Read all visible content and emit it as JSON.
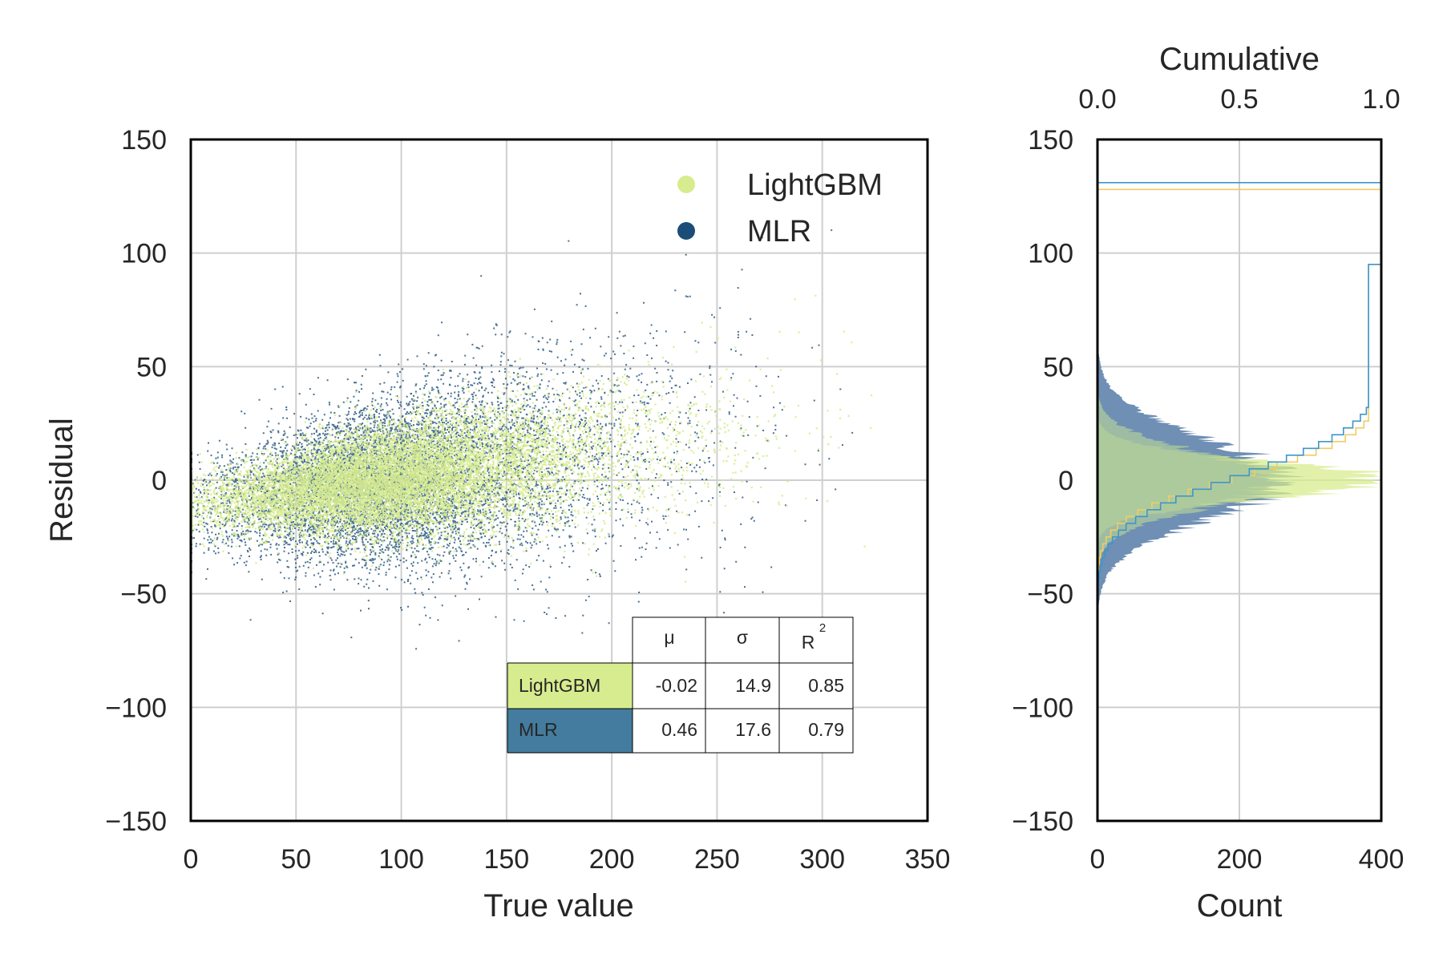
{
  "colors": {
    "lightgbm": "#d7ec8e",
    "mlr": "#1b4d78",
    "mlr_hist": "#6f8fb4",
    "lightgbm_cdf": "#f0cc66",
    "mlr_cdf": "#3f96c8",
    "overlap": "#a9c79f",
    "grid": "#cfcfcf",
    "table_mlr_cell": "#437c9e"
  },
  "chart_data": [
    {
      "type": "scatter",
      "xlabel": "True value",
      "ylabel": "Residual",
      "xlim": [
        0,
        350
      ],
      "ylim": [
        -150,
        150
      ],
      "xticks": [
        "0",
        "50",
        "100",
        "150",
        "200",
        "250",
        "300",
        "350"
      ],
      "yticks": [
        "150",
        "100",
        "50",
        "0",
        "−50",
        "−100",
        "−150"
      ],
      "grid": true,
      "legend": {
        "placement": "top-right",
        "entries": [
          "LightGBM",
          "MLR"
        ]
      },
      "series": [
        {
          "name": "LightGBM",
          "description_center": [
            90,
            0
          ],
          "spread_sigma": 14.9
        },
        {
          "name": "MLR",
          "description_center": [
            90,
            0
          ],
          "spread_sigma": 17.6
        }
      ],
      "table": {
        "placement": "lower-right",
        "columns": [
          "μ",
          "σ",
          "R"
        ],
        "r_superscript": "2",
        "rows": [
          {
            "label": "LightGBM",
            "values": [
              "-0.02",
              "14.9",
              "0.85"
            ]
          },
          {
            "label": "MLR",
            "values": [
              "0.46",
              "17.6",
              "0.79"
            ]
          }
        ]
      }
    },
    {
      "type": "histogram",
      "orientation": "horizontal",
      "xlabel": "Count",
      "xlim": [
        0,
        400
      ],
      "xticks": [
        "0",
        "200",
        "400"
      ],
      "ylim": [
        -150,
        150
      ],
      "yticks": [
        "150",
        "100",
        "50",
        "0",
        "−50",
        "−100",
        "−150"
      ],
      "top_axis": {
        "label": "Cumulative",
        "range": [
          0,
          1
        ],
        "ticks": [
          "0.0",
          "0.5",
          "1.0"
        ]
      },
      "series": [
        {
          "name": "LightGBM",
          "mean": -0.02,
          "sigma": 14.9,
          "peak_count": 400
        },
        {
          "name": "MLR",
          "mean": 0.46,
          "sigma": 17.6,
          "peak_count": 260
        }
      ],
      "cumulative_max": [
        {
          "name": "LightGBM",
          "y": 128
        },
        {
          "name": "MLR",
          "y": 131
        }
      ],
      "grid": true
    }
  ]
}
